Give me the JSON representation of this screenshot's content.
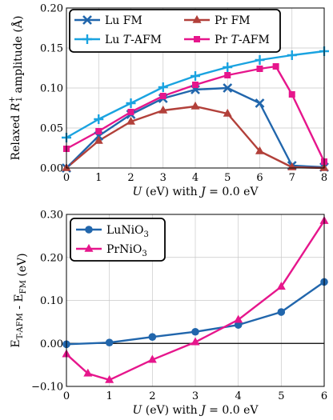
{
  "chart_data": [
    {
      "type": "line",
      "xlabel": "U (eV) with J = 0.0 eV",
      "ylabel": "Relaxed R1+ amplitude (Å)",
      "xlim": [
        0,
        8
      ],
      "ylim": [
        0,
        0.2
      ],
      "xticks": [
        0,
        1,
        2,
        3,
        4,
        5,
        6,
        7,
        8
      ],
      "yticks": [
        0.0,
        0.05,
        0.1,
        0.15,
        0.2
      ],
      "ytick_labels": [
        "0.00",
        "0.05",
        "0.10",
        "0.15",
        "0.20"
      ],
      "grid": true,
      "legend_placement": "top-left",
      "series": [
        {
          "name": "Lu FM",
          "color": "#2166ac",
          "marker": "x",
          "x": [
            0,
            1,
            2,
            3,
            4,
            5,
            6,
            7,
            8
          ],
          "y": [
            0.0,
            0.04,
            0.067,
            0.087,
            0.098,
            0.1,
            0.081,
            0.003,
            0.001
          ]
        },
        {
          "name": "Pr FM",
          "color": "#b2403a",
          "marker": "triangle",
          "x": [
            0,
            1,
            2,
            3,
            4,
            5,
            6,
            7,
            8
          ],
          "y": [
            0.0,
            0.034,
            0.058,
            0.072,
            0.077,
            0.068,
            0.021,
            0.001,
            0.0
          ]
        },
        {
          "name": "Lu T-AFM",
          "color": "#1aa3e0",
          "marker": "plus",
          "x": [
            0,
            1,
            2,
            3,
            4,
            5,
            6,
            7,
            8
          ],
          "y": [
            0.038,
            0.061,
            0.081,
            0.101,
            0.115,
            0.126,
            0.135,
            0.141,
            0.146
          ]
        },
        {
          "name": "Pr T-AFM",
          "color": "#e6168c",
          "marker": "square",
          "x": [
            0,
            1,
            2,
            3,
            4,
            5,
            6,
            6.5,
            7,
            8
          ],
          "y": [
            0.024,
            0.046,
            0.07,
            0.09,
            0.104,
            0.116,
            0.124,
            0.127,
            0.092,
            0.008
          ]
        }
      ]
    },
    {
      "type": "line",
      "xlabel": "U (eV) with J = 0.0 eV",
      "ylabel": "E_{T-AFM} - E_{FM} (eV)",
      "xlim": [
        0,
        6
      ],
      "ylim": [
        -0.1,
        0.3
      ],
      "xticks": [
        0,
        1,
        2,
        3,
        4,
        5,
        6
      ],
      "yticks": [
        -0.1,
        0.0,
        0.1,
        0.2,
        0.3
      ],
      "ytick_labels": [
        "−0.10",
        "0.00",
        "0.10",
        "0.20",
        "0.30"
      ],
      "grid": true,
      "zero_line": true,
      "legend_placement": "top-left",
      "series": [
        {
          "name": "LuNiO3",
          "color": "#2166ac",
          "marker": "circle",
          "x": [
            0,
            1,
            2,
            3,
            4,
            5,
            6
          ],
          "y": [
            -0.002,
            0.002,
            0.015,
            0.027,
            0.043,
            0.073,
            0.143
          ]
        },
        {
          "name": "PrNiO3",
          "color": "#e6168c",
          "marker": "triangle",
          "x": [
            0,
            0.5,
            1,
            2,
            3,
            4,
            5,
            6
          ],
          "y": [
            -0.025,
            -0.07,
            -0.085,
            -0.038,
            0.003,
            0.055,
            0.132,
            0.285
          ]
        }
      ]
    }
  ]
}
